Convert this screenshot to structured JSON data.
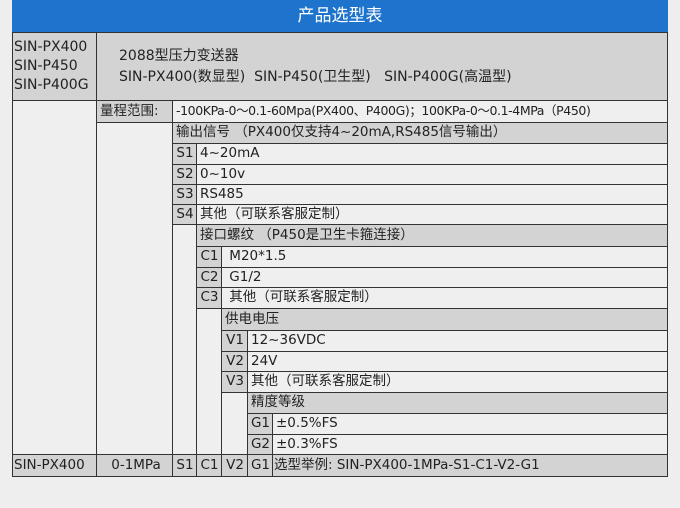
{
  "title": "产品选型表",
  "models": [
    "SIN-PX400",
    "SIN-P450",
    "SIN-P400G"
  ],
  "description": {
    "line1": "2088型压力变送器",
    "line2": "SIN-PX400(数显型)  SIN-P450(卫生型)   SIN-P400G(高温型)"
  },
  "range": {
    "label": "量程范围:",
    "value": "-100KPa-0～0.1-60Mpa(PX400、P400G)；100KPa-0～0.1-4MPa（P450)"
  },
  "output": {
    "header": "输出信号 （PX400仅支持4~20mA,RS485信号输出）",
    "options": [
      {
        "code": "S1",
        "label": "4~20mA"
      },
      {
        "code": "S2",
        "label": "0~10v"
      },
      {
        "code": "S3",
        "label": "RS485"
      },
      {
        "code": "S4",
        "label": "其他（可联系客服定制）"
      }
    ]
  },
  "connection": {
    "header": "接口螺纹 （P450是卫生卡箍连接）",
    "options": [
      {
        "code": "C1",
        "label": " M20*1.5"
      },
      {
        "code": "C2",
        "label": " G1/2"
      },
      {
        "code": "C3",
        "label": " 其他（可联系客服定制）"
      }
    ]
  },
  "power": {
    "header": "供电电压",
    "options": [
      {
        "code": "V1",
        "label": "12~36VDC"
      },
      {
        "code": "V2",
        "label": "24V"
      },
      {
        "code": "V3",
        "label": "其他（可联系客服定制）"
      }
    ]
  },
  "accuracy": {
    "header": "精度等级",
    "options": [
      {
        "code": "G1",
        "label": "±0.5%FS"
      },
      {
        "code": "G2",
        "label": "±0.3%FS"
      }
    ]
  },
  "example": {
    "model": "SIN-PX400",
    "range": "0-1MPa",
    "output": "S1",
    "connection": "C1",
    "power": "V2",
    "accuracy": "G1",
    "text": "选型举例: SIN-PX400-1MPa-S1-C1-V2-G1"
  },
  "colors": {
    "header": "#1e74cc",
    "label_cell": "#d3d3d3",
    "value_cell": "#efefef"
  }
}
